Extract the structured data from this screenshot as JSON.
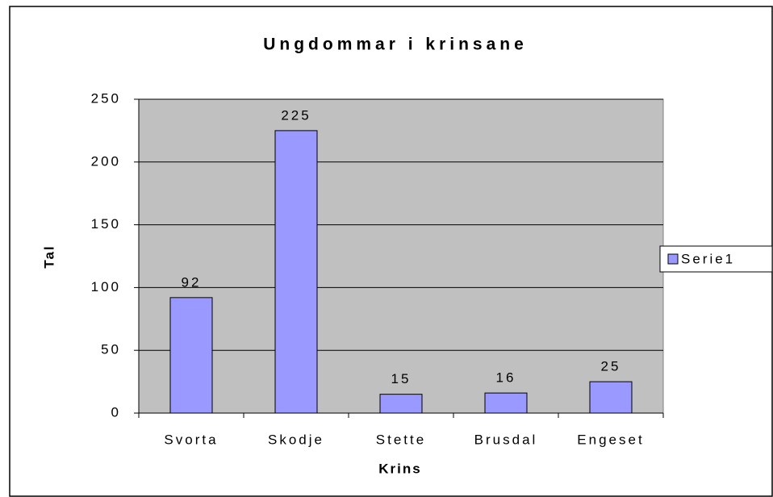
{
  "chart_data": {
    "type": "bar",
    "title": "Ungdommar i krinsane",
    "x_label": "Krins",
    "y_label": "Tal",
    "categories": [
      "Svorta",
      "Skodje",
      "Stette",
      "Brusdal",
      "Engeset"
    ],
    "series": [
      {
        "name": "Serie1",
        "color": "#9999ff",
        "values": [
          92,
          225,
          15,
          16,
          25
        ]
      }
    ],
    "ylim": [
      0,
      250
    ],
    "yticks": [
      0,
      50,
      100,
      150,
      200,
      250
    ],
    "grid": true,
    "legend": "right"
  }
}
